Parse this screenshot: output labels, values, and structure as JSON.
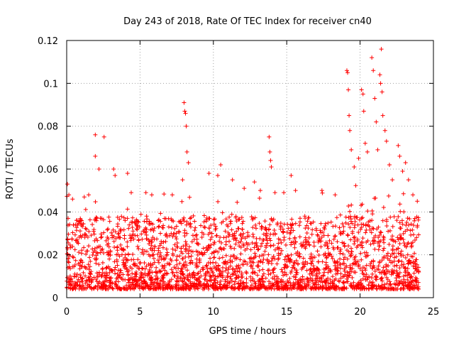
{
  "chart_data": {
    "type": "scatter",
    "title": "Day 243 of 2018, Rate Of TEC Index for receiver cn40",
    "xlabel": "GPS time / hours",
    "ylabel": "ROTI / TECUs",
    "xlim": [
      0,
      25
    ],
    "ylim": [
      0,
      0.12
    ],
    "x_ticks": [
      "0",
      "5",
      "10",
      "15",
      "20",
      "25"
    ],
    "y_ticks": [
      "0",
      "0.02",
      "0.04",
      "0.06",
      "0.08",
      "0.1",
      "0.12"
    ],
    "grid": true,
    "marker": "+",
    "color": "#ff0000",
    "series": [
      {
        "name": "ROTI",
        "note": "dense cloud of ~2-minute samples, 0.003–0.05 TECU/min baseline from 0 to 24 h; representative outlier points listed",
        "points": [
          [
            0.05,
            0.053
          ],
          [
            0.15,
            0.048
          ],
          [
            0.4,
            0.046
          ],
          [
            1.2,
            0.047
          ],
          [
            1.5,
            0.048
          ],
          [
            1.95,
            0.076
          ],
          [
            1.95,
            0.066
          ],
          [
            2.2,
            0.06
          ],
          [
            2.55,
            0.075
          ],
          [
            3.2,
            0.06
          ],
          [
            3.3,
            0.057
          ],
          [
            4.15,
            0.058
          ],
          [
            4.4,
            0.049
          ],
          [
            5.4,
            0.049
          ],
          [
            5.8,
            0.048
          ],
          [
            7.2,
            0.048
          ],
          [
            7.9,
            0.055
          ],
          [
            8.0,
            0.091
          ],
          [
            8.05,
            0.087
          ],
          [
            8.1,
            0.086
          ],
          [
            8.15,
            0.08
          ],
          [
            8.2,
            0.068
          ],
          [
            8.3,
            0.063
          ],
          [
            9.7,
            0.058
          ],
          [
            10.3,
            0.057
          ],
          [
            10.5,
            0.062
          ],
          [
            11.3,
            0.055
          ],
          [
            12.1,
            0.051
          ],
          [
            12.8,
            0.054
          ],
          [
            13.2,
            0.05
          ],
          [
            13.8,
            0.075
          ],
          [
            13.85,
            0.068
          ],
          [
            13.9,
            0.064
          ],
          [
            13.95,
            0.061
          ],
          [
            14.2,
            0.049
          ],
          [
            14.8,
            0.049
          ],
          [
            15.3,
            0.057
          ],
          [
            15.6,
            0.05
          ],
          [
            17.4,
            0.05
          ],
          [
            18.3,
            0.048
          ],
          [
            19.1,
            0.106
          ],
          [
            19.15,
            0.105
          ],
          [
            19.2,
            0.097
          ],
          [
            19.25,
            0.085
          ],
          [
            19.3,
            0.078
          ],
          [
            19.4,
            0.069
          ],
          [
            19.6,
            0.061
          ],
          [
            19.9,
            0.065
          ],
          [
            20.1,
            0.097
          ],
          [
            20.2,
            0.095
          ],
          [
            20.25,
            0.087
          ],
          [
            20.35,
            0.072
          ],
          [
            20.5,
            0.068
          ],
          [
            20.8,
            0.112
          ],
          [
            20.9,
            0.106
          ],
          [
            21.0,
            0.093
          ],
          [
            21.1,
            0.082
          ],
          [
            21.2,
            0.069
          ],
          [
            21.35,
            0.104
          ],
          [
            21.4,
            0.1
          ],
          [
            21.45,
            0.116
          ],
          [
            21.5,
            0.096
          ],
          [
            21.55,
            0.085
          ],
          [
            21.7,
            0.078
          ],
          [
            21.8,
            0.073
          ],
          [
            22.0,
            0.062
          ],
          [
            22.2,
            0.055
          ],
          [
            22.6,
            0.071
          ],
          [
            22.7,
            0.066
          ],
          [
            22.9,
            0.059
          ],
          [
            23.1,
            0.063
          ],
          [
            23.3,
            0.055
          ],
          [
            23.6,
            0.048
          ],
          [
            23.9,
            0.045
          ]
        ]
      }
    ]
  }
}
